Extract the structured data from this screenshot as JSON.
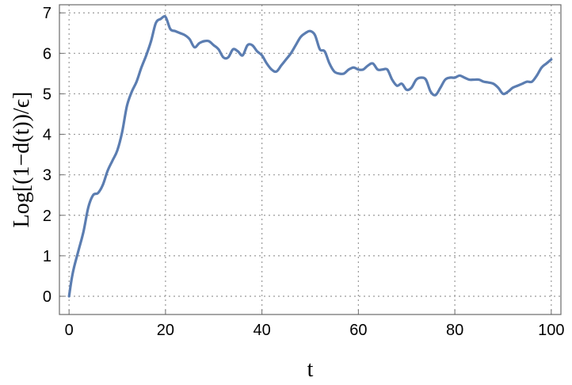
{
  "chart_data": {
    "type": "line",
    "title": "",
    "xlabel": "t",
    "ylabel": "Log[(1−d(t))/ϵ]",
    "xlim": [
      -2,
      102
    ],
    "ylim": [
      -0.45,
      7.2
    ],
    "xticks": [
      0,
      20,
      40,
      60,
      80,
      100
    ],
    "yticks": [
      0,
      1,
      2,
      3,
      4,
      5,
      6,
      7
    ],
    "xtick_labels": [
      "0",
      "20",
      "40",
      "60",
      "80",
      "100"
    ],
    "ytick_labels": [
      "0",
      "1",
      "2",
      "3",
      "4",
      "5",
      "6",
      "7"
    ],
    "grid": true,
    "line_color": "#5B7DB1",
    "series": [
      {
        "x": [
          0,
          0.5,
          1,
          2,
          3,
          4,
          5,
          6,
          7,
          8,
          9,
          10,
          11,
          12,
          13,
          14,
          15,
          16,
          17,
          18,
          19,
          20,
          21,
          22,
          23,
          24,
          25,
          26,
          27,
          28,
          29,
          30,
          31,
          32,
          33,
          34,
          35,
          36,
          37,
          38,
          39,
          40,
          41,
          42,
          43,
          44,
          45,
          46,
          47,
          48,
          49,
          50,
          51,
          52,
          53,
          54,
          55,
          56,
          57,
          58,
          59,
          60,
          61,
          62,
          63,
          64,
          65,
          66,
          67,
          68,
          69,
          70,
          71,
          72,
          73,
          74,
          75,
          76,
          77,
          78,
          79,
          80,
          81,
          82,
          83,
          84,
          85,
          86,
          87,
          88,
          89,
          90,
          91,
          92,
          93,
          94,
          95,
          96,
          97,
          98,
          99,
          100
        ],
        "y": [
          0.0,
          0.4,
          0.7,
          1.15,
          1.6,
          2.2,
          2.5,
          2.55,
          2.75,
          3.1,
          3.35,
          3.6,
          4.05,
          4.7,
          5.05,
          5.3,
          5.65,
          5.95,
          6.3,
          6.75,
          6.85,
          6.9,
          6.6,
          6.55,
          6.5,
          6.45,
          6.35,
          6.15,
          6.25,
          6.3,
          6.3,
          6.2,
          6.1,
          5.9,
          5.9,
          6.1,
          6.05,
          5.95,
          6.2,
          6.2,
          6.05,
          5.95,
          5.75,
          5.6,
          5.55,
          5.7,
          5.85,
          6.0,
          6.2,
          6.4,
          6.5,
          6.55,
          6.45,
          6.1,
          6.05,
          5.75,
          5.55,
          5.5,
          5.5,
          5.6,
          5.65,
          5.6,
          5.6,
          5.7,
          5.75,
          5.6,
          5.6,
          5.6,
          5.35,
          5.2,
          5.25,
          5.1,
          5.15,
          5.35,
          5.4,
          5.35,
          5.05,
          4.97,
          5.15,
          5.35,
          5.4,
          5.4,
          5.45,
          5.4,
          5.35,
          5.35,
          5.35,
          5.3,
          5.28,
          5.25,
          5.15,
          5.0,
          5.05,
          5.15,
          5.2,
          5.25,
          5.3,
          5.3,
          5.45,
          5.65,
          5.75,
          5.85
        ]
      }
    ]
  }
}
